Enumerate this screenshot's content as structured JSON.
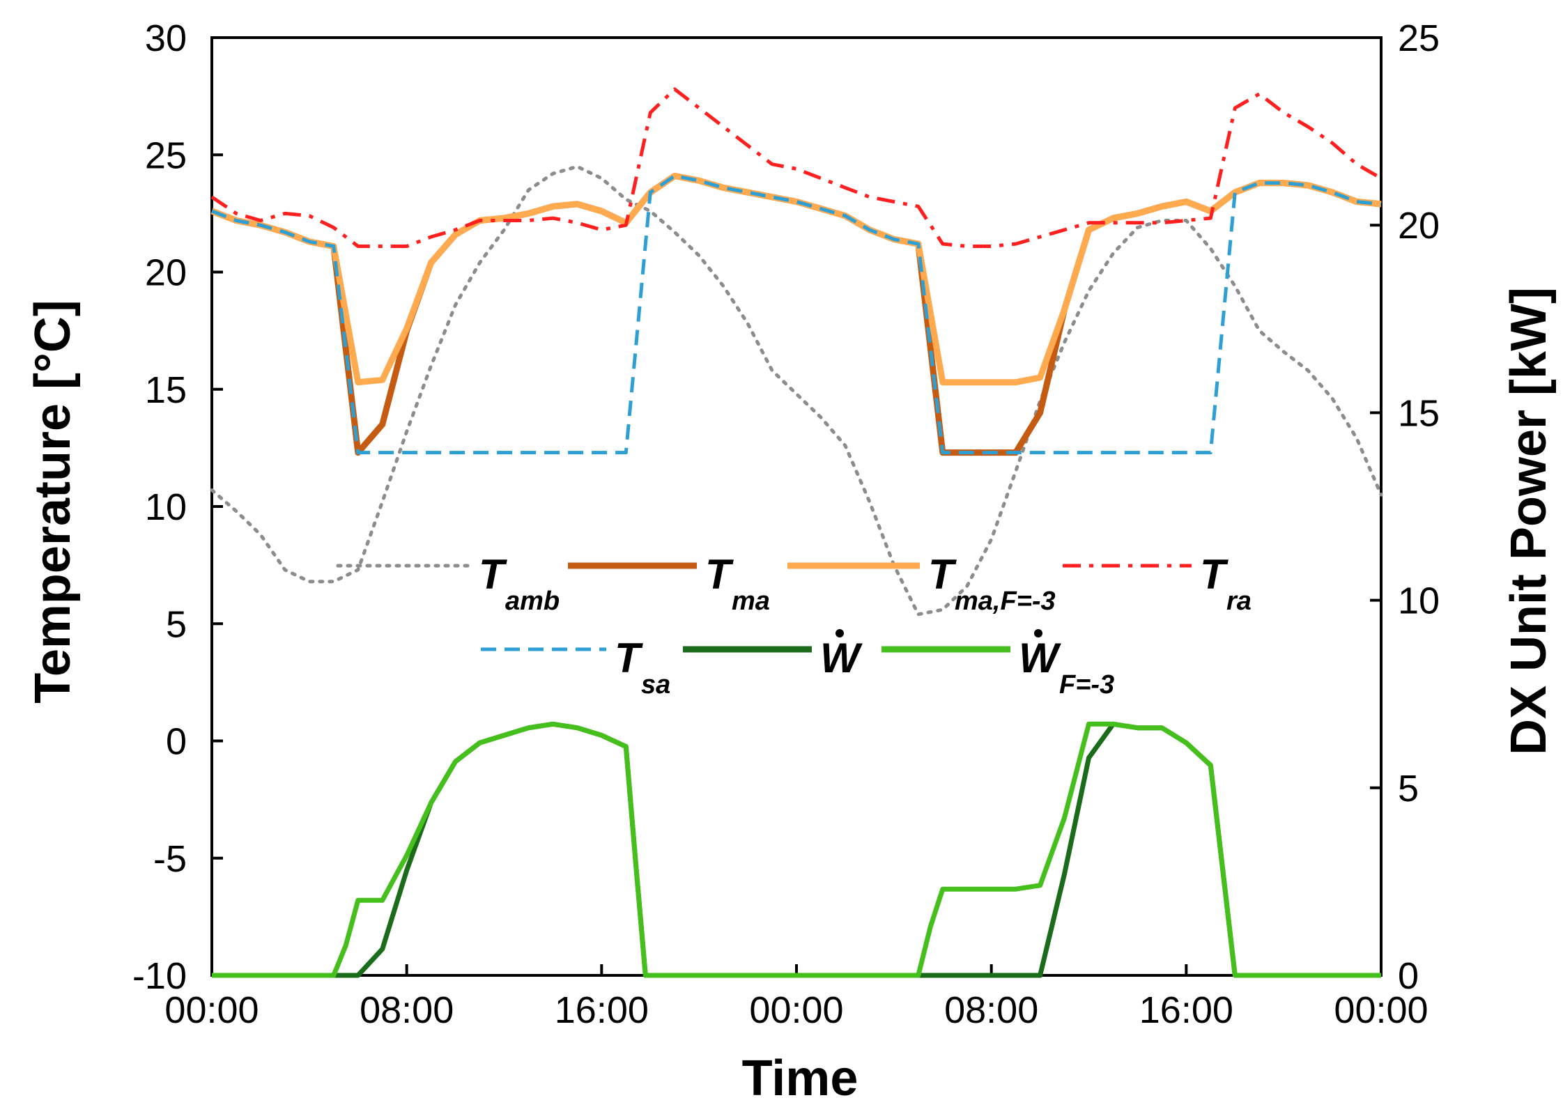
{
  "chart_data": {
    "type": "line",
    "xlabel": "Time",
    "ylabel_left": "Temperature [°C]",
    "ylabel_right": "DX Unit Power [kW]",
    "x_hours_range": [
      0,
      48
    ],
    "x_ticks": [
      {
        "h": 0,
        "label": "00:00"
      },
      {
        "h": 8,
        "label": "08:00"
      },
      {
        "h": 16,
        "label": "16:00"
      },
      {
        "h": 24,
        "label": "00:00"
      },
      {
        "h": 32,
        "label": "08:00"
      },
      {
        "h": 40,
        "label": "16:00"
      },
      {
        "h": 48,
        "label": "00:00"
      }
    ],
    "ylim_left": [
      -10,
      30
    ],
    "yticks_left": [
      -10,
      -5,
      0,
      5,
      10,
      15,
      20,
      25,
      30
    ],
    "ylim_right": [
      0,
      25
    ],
    "yticks_right": [
      0,
      5,
      10,
      15,
      20,
      25
    ],
    "series": [
      {
        "name": "T_amb",
        "label_main": "T",
        "label_sub": "amb",
        "axis": "left",
        "color": "#8c8c8c",
        "dash": "dotted",
        "x": [
          0,
          1,
          2,
          3,
          4,
          5,
          6,
          7,
          8,
          9,
          10,
          11,
          12,
          13,
          14,
          15,
          16,
          17,
          18,
          19,
          20,
          21,
          22,
          23,
          24,
          25,
          26,
          27,
          28,
          29,
          30,
          31,
          32,
          33,
          34,
          35,
          36,
          37,
          38,
          39,
          40,
          41,
          42,
          43,
          44,
          45,
          46,
          47,
          48
        ],
        "values": [
          10.7,
          9.8,
          8.8,
          7.3,
          6.8,
          6.8,
          7.3,
          10.2,
          13.2,
          16.0,
          18.6,
          20.4,
          21.8,
          23.5,
          24.2,
          24.5,
          24.0,
          23.1,
          22.6,
          21.7,
          20.7,
          19.4,
          17.8,
          15.8,
          14.8,
          13.8,
          12.6,
          10.2,
          7.5,
          5.4,
          5.6,
          6.6,
          8.6,
          11.5,
          14.5,
          17.0,
          19.2,
          20.8,
          21.9,
          22.2,
          22.2,
          21.0,
          19.4,
          17.5,
          16.6,
          15.8,
          14.6,
          12.9,
          10.5
        ]
      },
      {
        "name": "T_ma",
        "label_main": "T",
        "label_sub": "ma",
        "axis": "left",
        "color": "#c55a11",
        "dash": "solid",
        "x": [
          0,
          1,
          2,
          3,
          4,
          5,
          6,
          7,
          8,
          9,
          10,
          11,
          12,
          13,
          14,
          15,
          16,
          17,
          18,
          19,
          20,
          21,
          22,
          23,
          24,
          25,
          26,
          27,
          28,
          29,
          30,
          31,
          32,
          33,
          34,
          35,
          36,
          37,
          38,
          39,
          40,
          41,
          42,
          43,
          44,
          45,
          46,
          47,
          48
        ],
        "values": [
          22.6,
          22.2,
          22.0,
          21.7,
          21.3,
          21.1,
          12.3,
          13.5,
          17.5,
          20.4,
          21.6,
          22.2,
          22.3,
          22.5,
          22.8,
          22.9,
          22.6,
          22.1,
          23.4,
          24.1,
          23.9,
          23.6,
          23.4,
          23.2,
          23.0,
          22.7,
          22.4,
          21.8,
          21.4,
          21.2,
          12.3,
          12.3,
          12.3,
          12.3,
          14.0,
          18.4,
          21.8,
          22.3,
          22.5,
          22.8,
          23.0,
          22.6,
          23.4,
          23.8,
          23.8,
          23.7,
          23.4,
          23.0,
          22.9
        ]
      },
      {
        "name": "T_ma,F=-3",
        "label_main": "T",
        "label_sub": "ma,F=-3",
        "axis": "left",
        "color": "#ffaa4f",
        "dash": "solid",
        "x": [
          0,
          1,
          2,
          3,
          4,
          5,
          6,
          7,
          8,
          9,
          10,
          11,
          12,
          13,
          14,
          15,
          16,
          17,
          18,
          19,
          20,
          21,
          22,
          23,
          24,
          25,
          26,
          27,
          28,
          29,
          30,
          31,
          32,
          33,
          34,
          35,
          36,
          37,
          38,
          39,
          40,
          41,
          42,
          43,
          44,
          45,
          46,
          47,
          48
        ],
        "values": [
          22.6,
          22.2,
          22.0,
          21.7,
          21.3,
          21.1,
          15.3,
          15.4,
          17.6,
          20.4,
          21.6,
          22.2,
          22.3,
          22.5,
          22.8,
          22.9,
          22.6,
          22.1,
          23.4,
          24.1,
          23.9,
          23.6,
          23.4,
          23.2,
          23.0,
          22.7,
          22.4,
          21.8,
          21.4,
          21.2,
          15.3,
          15.3,
          15.3,
          15.3,
          15.5,
          18.4,
          21.8,
          22.3,
          22.5,
          22.8,
          23.0,
          22.6,
          23.4,
          23.8,
          23.8,
          23.7,
          23.4,
          23.0,
          22.9
        ]
      },
      {
        "name": "T_ra",
        "label_main": "T",
        "label_sub": "ra",
        "axis": "left",
        "color": "#ff1f1f",
        "dash": "dashdot",
        "x": [
          0,
          1,
          2,
          3,
          4,
          5,
          6,
          7,
          8,
          9,
          10,
          11,
          12,
          13,
          14,
          15,
          16,
          17,
          18,
          19,
          20,
          21,
          22,
          23,
          24,
          25,
          26,
          27,
          28,
          29,
          30,
          31,
          32,
          33,
          34,
          35,
          36,
          37,
          38,
          39,
          40,
          41,
          42,
          43,
          44,
          45,
          46,
          47,
          48
        ],
        "values": [
          23.2,
          22.5,
          22.2,
          22.5,
          22.4,
          21.9,
          21.1,
          21.1,
          21.1,
          21.5,
          21.8,
          22.2,
          22.2,
          22.2,
          22.3,
          22.1,
          21.8,
          22.0,
          26.8,
          27.8,
          27.0,
          26.2,
          25.4,
          24.6,
          24.4,
          24.0,
          23.6,
          23.2,
          23.0,
          22.8,
          21.2,
          21.1,
          21.1,
          21.2,
          21.5,
          21.8,
          22.1,
          22.1,
          22.1,
          22.1,
          22.2,
          22.3,
          27.0,
          27.6,
          26.8,
          26.2,
          25.5,
          24.6,
          24.0
        ]
      },
      {
        "name": "T_sa",
        "label_main": "T",
        "label_sub": "sa",
        "axis": "left",
        "color": "#2e9fd4",
        "dash": "dashed",
        "x": [
          0,
          1,
          2,
          3,
          4,
          5,
          6,
          7,
          8,
          9,
          10,
          11,
          12,
          13,
          14,
          15,
          16,
          17,
          18,
          19,
          20,
          21,
          22,
          23,
          24,
          25,
          26,
          27,
          28,
          29,
          30,
          31,
          32,
          33,
          34,
          35,
          36,
          37,
          38,
          39,
          40,
          41,
          42,
          43,
          44,
          45,
          46,
          47,
          48
        ],
        "values": [
          22.6,
          22.2,
          22.0,
          21.7,
          21.3,
          21.1,
          12.3,
          12.3,
          12.3,
          12.3,
          12.3,
          12.3,
          12.3,
          12.3,
          12.3,
          12.3,
          12.3,
          12.3,
          23.4,
          24.1,
          23.9,
          23.6,
          23.4,
          23.2,
          23.0,
          22.7,
          22.4,
          21.8,
          21.4,
          21.2,
          12.3,
          12.3,
          12.3,
          12.3,
          12.3,
          12.3,
          12.3,
          12.3,
          12.3,
          12.3,
          12.3,
          12.3,
          23.4,
          23.8,
          23.8,
          23.7,
          23.4,
          23.0,
          22.9
        ]
      },
      {
        "name": "W_dot",
        "label_main": "W",
        "label_sub": "",
        "axis": "right",
        "color": "#1a6b1a",
        "dash": "solid",
        "x": [
          0,
          2,
          4,
          5,
          6,
          7,
          8,
          9,
          10,
          11,
          12,
          13,
          14,
          15,
          16,
          17,
          17.4,
          17.8,
          19,
          21,
          23,
          25,
          27,
          29,
          30,
          31,
          32,
          33,
          34,
          35,
          36,
          37,
          38,
          39,
          40,
          41,
          42,
          43,
          44,
          46,
          48
        ],
        "values": [
          0,
          0,
          0,
          0,
          0,
          0.7,
          2.8,
          4.6,
          5.7,
          6.2,
          6.4,
          6.6,
          6.7,
          6.6,
          6.4,
          6.1,
          3.0,
          0,
          0,
          0,
          0,
          0,
          0,
          0,
          0,
          0,
          0,
          0,
          0,
          2.7,
          5.8,
          6.7,
          6.6,
          6.6,
          6.2,
          5.6,
          0,
          0,
          0,
          0,
          0
        ]
      },
      {
        "name": "W_dot,F=-3",
        "label_main": "W",
        "label_sub": "F=-3",
        "axis": "right",
        "color": "#44bf1c",
        "dash": "solid",
        "x": [
          0,
          2,
          4,
          5,
          5.5,
          6,
          7,
          8,
          9,
          10,
          11,
          12,
          13,
          14,
          15,
          16,
          17,
          17.4,
          17.8,
          19,
          21,
          23,
          25,
          27,
          29,
          29.5,
          30,
          31,
          32,
          33,
          34,
          35,
          36,
          37,
          38,
          39,
          40,
          41,
          42,
          43,
          44,
          46,
          48
        ],
        "values": [
          0,
          0,
          0,
          0,
          0.8,
          2.0,
          2.0,
          3.2,
          4.6,
          5.7,
          6.2,
          6.4,
          6.6,
          6.7,
          6.6,
          6.4,
          6.1,
          3.0,
          0,
          0,
          0,
          0,
          0,
          0,
          0,
          1.3,
          2.3,
          2.3,
          2.3,
          2.3,
          2.4,
          4.2,
          6.7,
          6.7,
          6.6,
          6.6,
          6.2,
          5.6,
          0,
          0,
          0,
          0,
          0
        ]
      }
    ]
  }
}
